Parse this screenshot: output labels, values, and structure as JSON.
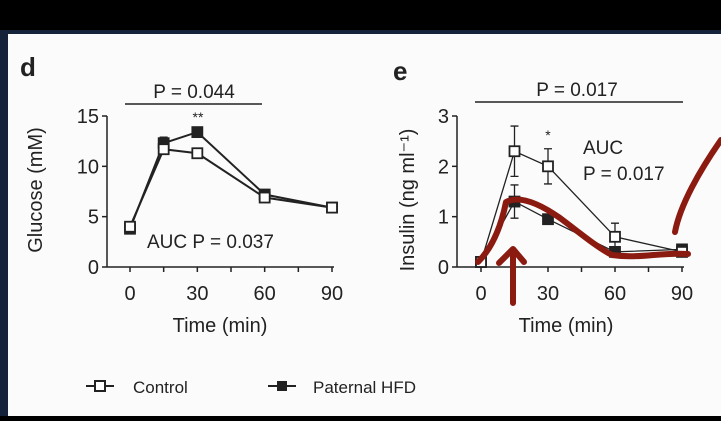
{
  "chart_data": [
    {
      "type": "line",
      "panel_label": "d",
      "ylabel": "Glucose (mM)",
      "xlabel": "Time (min)",
      "x": [
        0,
        15,
        30,
        60,
        90
      ],
      "xticks": [
        "0",
        "30",
        "60",
        "90"
      ],
      "xtick_values": [
        0,
        30,
        60,
        90
      ],
      "yticks": [
        "0",
        "5",
        "10",
        "15"
      ],
      "ytick_values": [
        0,
        5,
        10,
        15
      ],
      "xlim": [
        0,
        90
      ],
      "ylim": [
        0,
        15
      ],
      "series": [
        {
          "name": "Control",
          "marker": "open-square",
          "values": [
            4.0,
            11.7,
            11.3,
            6.9,
            5.9
          ],
          "errors": [
            0.2,
            0.4,
            0.4,
            0.2,
            0.2
          ]
        },
        {
          "name": "Paternal HFD",
          "marker": "filled-square",
          "values": [
            3.8,
            12.3,
            13.4,
            7.2,
            5.9
          ],
          "errors": [
            0.2,
            0.6,
            0.3,
            0.2,
            0.2
          ]
        }
      ],
      "annotations": {
        "top_p": "P = 0.044",
        "stars": "**",
        "stars_x": 30,
        "auc": "AUC P = 0.037"
      }
    },
    {
      "type": "line",
      "panel_label": "e",
      "ylabel": "Insulin (ng ml⁻¹)",
      "xlabel": "Time (min)",
      "x": [
        0,
        15,
        30,
        60,
        90
      ],
      "xticks": [
        "0",
        "30",
        "60",
        "90"
      ],
      "xtick_values": [
        0,
        30,
        60,
        90
      ],
      "yticks": [
        "0",
        "1",
        "2",
        "3"
      ],
      "ytick_values": [
        0,
        1,
        2,
        3
      ],
      "xlim": [
        0,
        90
      ],
      "ylim": [
        0,
        3
      ],
      "series": [
        {
          "name": "Control",
          "marker": "open-square",
          "values": [
            0.1,
            2.3,
            2.0,
            0.6,
            0.3
          ],
          "errors": [
            0.03,
            0.5,
            0.35,
            0.27,
            0.05
          ]
        },
        {
          "name": "Paternal HFD",
          "marker": "filled-square",
          "values": [
            0.1,
            1.3,
            0.95,
            0.3,
            0.35
          ],
          "errors": [
            0.03,
            0.33,
            0.1,
            0.05,
            0.05
          ]
        }
      ],
      "annotations": {
        "top_p": "P = 0.017",
        "stars": "*",
        "stars_x": 30,
        "auc_line1": "AUC",
        "auc_line2": "P = 0.017"
      }
    }
  ],
  "legend": {
    "control": "Control",
    "hfd": "Paternal HFD"
  },
  "colors": {
    "line": "#222222",
    "annotation": "#8b1a10",
    "frame": "#14223a"
  }
}
